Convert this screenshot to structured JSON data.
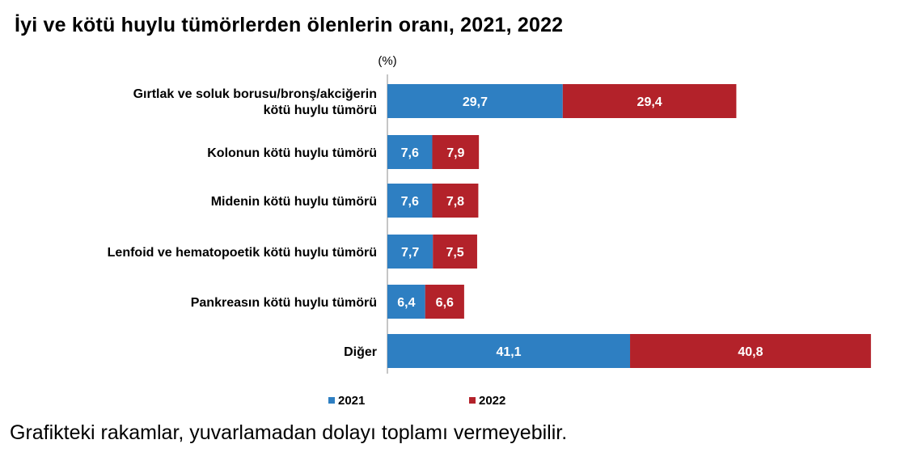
{
  "chart_data": {
    "type": "bar",
    "orientation": "horizontal",
    "stacked": true,
    "title": "İyi ve kötü huylu tümörlerden ölenlerin oranı, 2021, 2022",
    "unit_label": "(%)",
    "categories": [
      [
        "Gırtlak ve soluk borusu/bronş/akciğerin",
        "kötü huylu tümörü"
      ],
      [
        "Kolonun kötü huylu tümörü"
      ],
      [
        "Midenin kötü huylu tümörü"
      ],
      [
        "Lenfoid ve hematopoetik kötü huylu tümörü"
      ],
      [
        "Pankreasın kötü huylu tümörü"
      ],
      [
        "Diğer"
      ]
    ],
    "series": [
      {
        "name": "2021",
        "color": "#2e7fc2",
        "values": [
          29.7,
          7.6,
          7.6,
          7.7,
          6.4,
          41.1
        ],
        "labels": [
          "29,7",
          "7,6",
          "7,6",
          "7,7",
          "6,4",
          "41,1"
        ]
      },
      {
        "name": "2022",
        "color": "#b3222a",
        "values": [
          29.4,
          7.9,
          7.8,
          7.5,
          6.6,
          40.8
        ],
        "labels": [
          "29,4",
          "7,9",
          "7,8",
          "7,5",
          "6,6",
          "40,8"
        ]
      }
    ],
    "legend_position": "bottom",
    "grid": false
  },
  "footnote": "Grafikteki rakamlar, yuvarlamadan dolayı toplamı vermeyebilir."
}
